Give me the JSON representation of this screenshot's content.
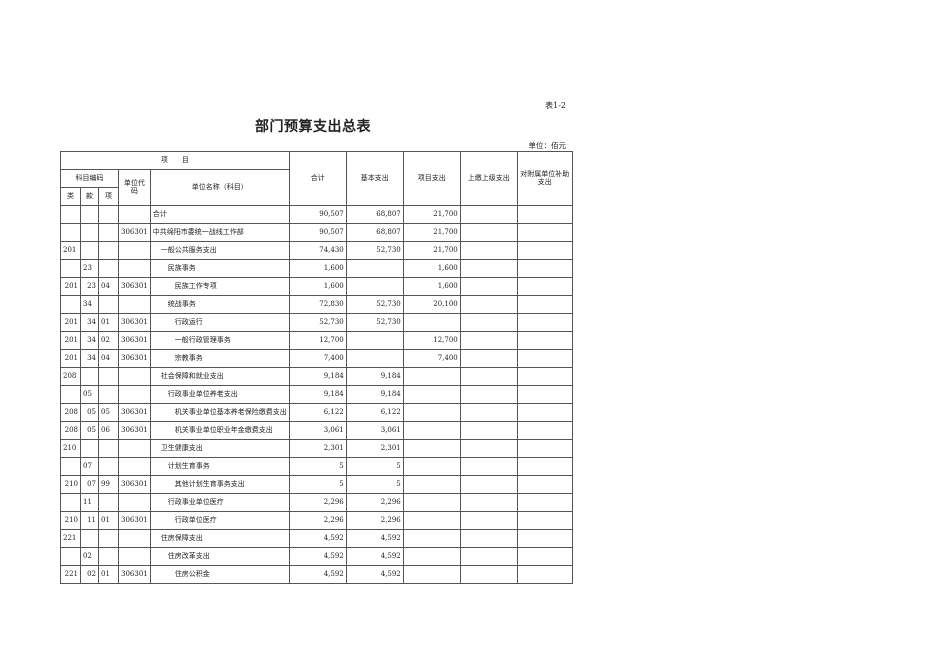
{
  "doc": {
    "tag": "表1-2",
    "title": "部门预算支出总表",
    "unit": "单位：佰元"
  },
  "header": {
    "item": "项　　目",
    "subject_code": "科目编码",
    "lei": "类",
    "kuan": "款",
    "xiang": "项",
    "unit_code": "单位代码",
    "unit_name": "单位名称（科目）",
    "total": "合计",
    "basic": "基本支出",
    "project": "项目支出",
    "upper": "上缴上级支出",
    "subsidy": "对附属单位补助支出"
  },
  "rows": [
    {
      "lei": "",
      "kuan": "",
      "xiang": "",
      "code": "",
      "name": "合计",
      "level": 0,
      "total": "90,507",
      "basic": "68,807",
      "project": "21,700",
      "upper": "",
      "subsidy": ""
    },
    {
      "lei": "",
      "kuan": "",
      "xiang": "",
      "code": "306301",
      "name": "中共绵阳市委统一战线工作部",
      "level": 0,
      "total": "90,507",
      "basic": "68,807",
      "project": "21,700",
      "upper": "",
      "subsidy": ""
    },
    {
      "lei": "201",
      "kuan": "",
      "xiang": "",
      "code": "",
      "name": "一般公共服务支出",
      "level": 1,
      "total": "74,430",
      "basic": "52,730",
      "project": "21,700",
      "upper": "",
      "subsidy": ""
    },
    {
      "lei": "",
      "kuan": "23",
      "xiang": "",
      "code": "",
      "name": "民族事务",
      "level": 2,
      "total": "1,600",
      "basic": "",
      "project": "1,600",
      "upper": "",
      "subsidy": ""
    },
    {
      "lei": "201",
      "kuan": "23",
      "xiang": "04",
      "code": "306301",
      "name": "民族工作专项",
      "level": 3,
      "total": "1,600",
      "basic": "",
      "project": "1,600",
      "upper": "",
      "subsidy": ""
    },
    {
      "lei": "",
      "kuan": "34",
      "xiang": "",
      "code": "",
      "name": "统战事务",
      "level": 2,
      "total": "72,830",
      "basic": "52,730",
      "project": "20,100",
      "upper": "",
      "subsidy": ""
    },
    {
      "lei": "201",
      "kuan": "34",
      "xiang": "01",
      "code": "306301",
      "name": "行政运行",
      "level": 3,
      "total": "52,730",
      "basic": "52,730",
      "project": "",
      "upper": "",
      "subsidy": ""
    },
    {
      "lei": "201",
      "kuan": "34",
      "xiang": "02",
      "code": "306301",
      "name": "一般行政管理事务",
      "level": 3,
      "total": "12,700",
      "basic": "",
      "project": "12,700",
      "upper": "",
      "subsidy": ""
    },
    {
      "lei": "201",
      "kuan": "34",
      "xiang": "04",
      "code": "306301",
      "name": "宗教事务",
      "level": 3,
      "total": "7,400",
      "basic": "",
      "project": "7,400",
      "upper": "",
      "subsidy": ""
    },
    {
      "lei": "208",
      "kuan": "",
      "xiang": "",
      "code": "",
      "name": "社会保障和就业支出",
      "level": 1,
      "total": "9,184",
      "basic": "9,184",
      "project": "",
      "upper": "",
      "subsidy": ""
    },
    {
      "lei": "",
      "kuan": "05",
      "xiang": "",
      "code": "",
      "name": "行政事业单位养老支出",
      "level": 2,
      "total": "9,184",
      "basic": "9,184",
      "project": "",
      "upper": "",
      "subsidy": ""
    },
    {
      "lei": "208",
      "kuan": "05",
      "xiang": "05",
      "code": "306301",
      "name": "机关事业单位基本养老保险缴费支出",
      "level": 3,
      "total": "6,122",
      "basic": "6,122",
      "project": "",
      "upper": "",
      "subsidy": ""
    },
    {
      "lei": "208",
      "kuan": "05",
      "xiang": "06",
      "code": "306301",
      "name": "机关事业单位职业年金缴费支出",
      "level": 3,
      "total": "3,061",
      "basic": "3,061",
      "project": "",
      "upper": "",
      "subsidy": ""
    },
    {
      "lei": "210",
      "kuan": "",
      "xiang": "",
      "code": "",
      "name": "卫生健康支出",
      "level": 1,
      "total": "2,301",
      "basic": "2,301",
      "project": "",
      "upper": "",
      "subsidy": ""
    },
    {
      "lei": "",
      "kuan": "07",
      "xiang": "",
      "code": "",
      "name": "计划生育事务",
      "level": 2,
      "total": "5",
      "basic": "5",
      "project": "",
      "upper": "",
      "subsidy": ""
    },
    {
      "lei": "210",
      "kuan": "07",
      "xiang": "99",
      "code": "306301",
      "name": "其他计划生育事务支出",
      "level": 3,
      "total": "5",
      "basic": "5",
      "project": "",
      "upper": "",
      "subsidy": ""
    },
    {
      "lei": "",
      "kuan": "11",
      "xiang": "",
      "code": "",
      "name": "行政事业单位医疗",
      "level": 2,
      "total": "2,296",
      "basic": "2,296",
      "project": "",
      "upper": "",
      "subsidy": ""
    },
    {
      "lei": "210",
      "kuan": "11",
      "xiang": "01",
      "code": "306301",
      "name": "行政单位医疗",
      "level": 3,
      "total": "2,296",
      "basic": "2,296",
      "project": "",
      "upper": "",
      "subsidy": ""
    },
    {
      "lei": "221",
      "kuan": "",
      "xiang": "",
      "code": "",
      "name": "住房保障支出",
      "level": 1,
      "total": "4,592",
      "basic": "4,592",
      "project": "",
      "upper": "",
      "subsidy": ""
    },
    {
      "lei": "",
      "kuan": "02",
      "xiang": "",
      "code": "",
      "name": "住房改革支出",
      "level": 2,
      "total": "4,592",
      "basic": "4,592",
      "project": "",
      "upper": "",
      "subsidy": ""
    },
    {
      "lei": "221",
      "kuan": "02",
      "xiang": "01",
      "code": "306301",
      "name": "住房公积金",
      "level": 3,
      "total": "4,592",
      "basic": "4,592",
      "project": "",
      "upper": "",
      "subsidy": ""
    }
  ]
}
